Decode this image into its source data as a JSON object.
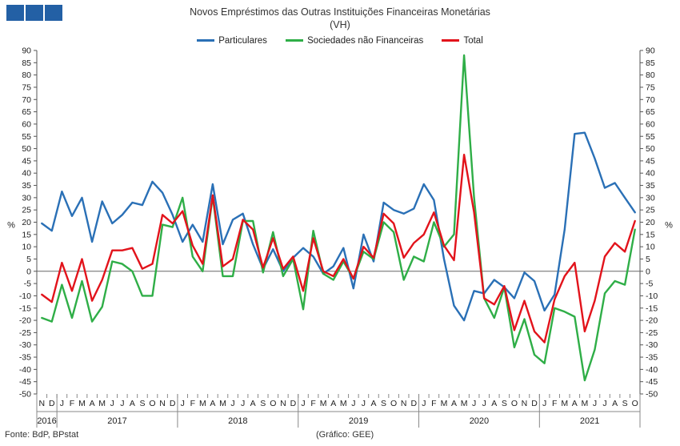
{
  "header": {
    "logo_blocks": [
      "#2360a5",
      "#2360a5",
      "#2360a5"
    ],
    "title": "Novos Empréstimos das Outras Instituições Financeiras Monetárias",
    "subtitle": "(VH)"
  },
  "footer": {
    "source": "Fonte: BdP, BPstat",
    "credit": "(Gráfico: GEE)"
  },
  "chart_data": {
    "type": "line",
    "title": "Novos Empréstimos das Outras Instituições Financeiras Monetárias",
    "subtitle": "(VH)",
    "ylabel": "%",
    "ylim": [
      -50,
      90
    ],
    "ytick_step": 5,
    "grid": false,
    "legend_position": "top-center",
    "month_labels": [
      "N",
      "D",
      "J",
      "F",
      "M",
      "A",
      "M",
      "J",
      "J",
      "A",
      "S",
      "O",
      "N",
      "D",
      "J",
      "F",
      "M",
      "A",
      "M",
      "J",
      "J",
      "A",
      "S",
      "O",
      "N",
      "D",
      "J",
      "F",
      "M",
      "A",
      "M",
      "J",
      "J",
      "A",
      "S",
      "O",
      "N",
      "D",
      "J",
      "F",
      "M",
      "A",
      "M",
      "J",
      "J",
      "A",
      "S",
      "O",
      "N",
      "D",
      "J",
      "F",
      "M",
      "A",
      "M",
      "J",
      "J",
      "A",
      "S",
      "O"
    ],
    "year_labels": [
      {
        "label": "2016",
        "start": 0,
        "end": 1
      },
      {
        "label": "2017",
        "start": 2,
        "end": 13
      },
      {
        "label": "2018",
        "start": 14,
        "end": 25
      },
      {
        "label": "2019",
        "start": 26,
        "end": 37
      },
      {
        "label": "2020",
        "start": 38,
        "end": 49
      },
      {
        "label": "2021",
        "start": 50,
        "end": 59
      }
    ],
    "series": [
      {
        "name": "Particulares",
        "color": "#2a70b6",
        "values": [
          19.5,
          16.5,
          32.5,
          22.5,
          30,
          12,
          28.5,
          19.5,
          23,
          28,
          27,
          36.5,
          32,
          23,
          12,
          19,
          12,
          35.5,
          11,
          21,
          23.5,
          11,
          1,
          9,
          0,
          5.5,
          9.5,
          6,
          -1,
          2,
          9.5,
          -7,
          15,
          4,
          28,
          25,
          23.5,
          25.5,
          35.5,
          29,
          5,
          -14,
          -20,
          -8,
          -9,
          -3.5,
          -6.5,
          -11,
          -0.5,
          -4,
          -16,
          -9.5,
          17,
          56,
          56.5,
          46,
          34,
          36,
          30,
          24
        ]
      },
      {
        "name": "Sociedades não Financeiras",
        "color": "#2fae47",
        "values": [
          -19,
          -20.5,
          -5.5,
          -19,
          -4,
          -20.5,
          -14.5,
          4,
          3,
          0,
          -10,
          -10,
          19,
          18,
          30,
          6,
          0,
          30.5,
          -2,
          -2,
          20.5,
          20.5,
          -0.5,
          16,
          -2,
          5,
          -15.5,
          16.5,
          -1,
          -3.5,
          4,
          -3,
          8,
          5,
          20,
          16,
          -3.5,
          6,
          4,
          20,
          10,
          15,
          88,
          30,
          -11,
          -19,
          -6.5,
          -31,
          -19.5,
          -34,
          -37.5,
          -15,
          -16.5,
          -18.5,
          -44.5,
          -32,
          -9,
          -4,
          -5.5,
          17
        ]
      },
      {
        "name": "Total",
        "color": "#e2131b",
        "values": [
          -9.5,
          -12.5,
          3.5,
          -8,
          5,
          -12,
          -3.5,
          8.5,
          8.5,
          9.5,
          1,
          3,
          23,
          19.5,
          24.5,
          10.5,
          3,
          31,
          2,
          5,
          21,
          17,
          1.5,
          13.5,
          1,
          6,
          -8,
          13.5,
          0,
          -2,
          5,
          -3,
          10,
          5.5,
          23.5,
          19.5,
          5.5,
          11.5,
          15,
          24,
          10.5,
          4.5,
          47.5,
          24,
          -11,
          -13.5,
          -6,
          -24,
          -12,
          -24.5,
          -29,
          -11.5,
          -2,
          3.5,
          -24.5,
          -12,
          6,
          11.5,
          8,
          20.5
        ]
      }
    ]
  }
}
